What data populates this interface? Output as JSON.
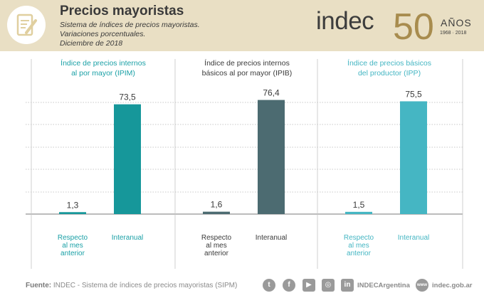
{
  "header": {
    "title": "Precios mayoristas",
    "subtitle_lines": [
      "Sistema de índices de precios mayoristas.",
      "Variaciones porcentuales.",
      "Diciembre de 2018"
    ],
    "icon": "document-edit-icon"
  },
  "logo": {
    "brand": "indec",
    "anniversary": "50",
    "label": "AÑOS",
    "years": "1968 · 2018"
  },
  "colors": {
    "header_bg": "#e9dfc4",
    "ipim": "#16979a",
    "ipib": "#4c6b71",
    "ipp": "#45b6c3",
    "grid": "#b7b7b7"
  },
  "chart_data": {
    "type": "bar",
    "ylim": [
      0,
      90
    ],
    "categories": [
      "Respecto al mes anterior",
      "Interanual"
    ],
    "category_lines": [
      [
        "Respecto",
        "al mes",
        "anterior"
      ],
      [
        "Interanual"
      ]
    ],
    "panels": [
      {
        "title_lines": [
          "Índice de precios internos",
          "al por mayor (IPIM)"
        ],
        "values": [
          1.3,
          73.5
        ],
        "labels": [
          "1,3",
          "73,5"
        ],
        "color": "#16979a",
        "title_color": "#1aa0a6"
      },
      {
        "title_lines": [
          "Índice de precios internos",
          "básicos al por mayor (IPIB)"
        ],
        "values": [
          1.6,
          76.4
        ],
        "labels": [
          "1,6",
          "76,4"
        ],
        "color": "#4c6b71",
        "title_color": "#3a3a3a"
      },
      {
        "title_lines": [
          "Índice de precios básicos",
          "del productor (IPP)"
        ],
        "values": [
          1.5,
          75.5
        ],
        "labels": [
          "1,5",
          "75,5"
        ],
        "color": "#45b6c3",
        "title_color": "#45b6c3"
      }
    ]
  },
  "footer": {
    "source_label": "Fuente:",
    "source_text": "INDEC - Sistema de índices de precios mayoristas (SIPM)",
    "social": [
      {
        "icon": "twitter-icon",
        "glyph": "t"
      },
      {
        "icon": "facebook-icon",
        "glyph": "f"
      },
      {
        "icon": "youtube-icon",
        "glyph": "▶"
      },
      {
        "icon": "instagram-icon",
        "glyph": "◎"
      },
      {
        "icon": "linkedin-icon",
        "glyph": "in"
      }
    ],
    "handle": "INDECArgentina",
    "web_icon_text": "www",
    "website": "indec.gob.ar"
  }
}
